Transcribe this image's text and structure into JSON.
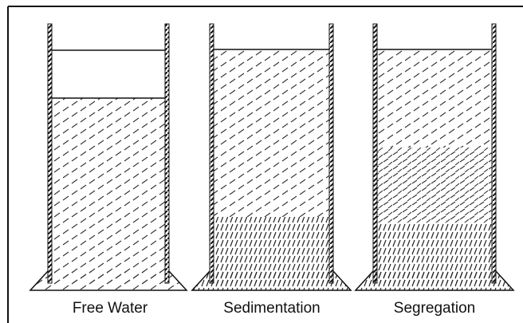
{
  "labels": [
    "Free Water",
    "Sedimentation",
    "Segregation"
  ]
}
